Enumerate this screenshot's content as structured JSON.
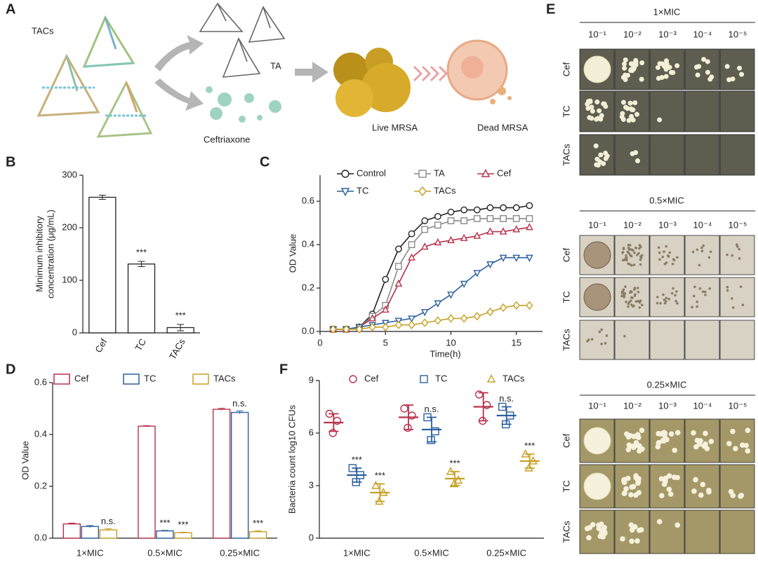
{
  "schematic": {
    "panel_label": "A",
    "labels": [
      "TACs",
      "TA",
      "Ceftriaxone",
      "Live MRSA",
      "Dead MRSA"
    ]
  },
  "plates": {
    "panel_label": "E",
    "blocks": [
      "1×MIC",
      "0.5×MIC",
      "0.25×MIC"
    ],
    "dilutions": [
      "10⁻¹",
      "10⁻²",
      "10⁻³",
      "10⁻⁴",
      "10⁻⁵"
    ],
    "rows": [
      "Cef",
      "TC",
      "TACs"
    ]
  },
  "chart_data": [
    {
      "panel_label": "B",
      "type": "bar",
      "ylabel": [
        "Minimum inhibitory",
        "concentration (μg/mL)"
      ],
      "categories": [
        "Cef",
        "TC",
        "TACs"
      ],
      "values": [
        258,
        131,
        10
      ],
      "errors": [
        4,
        5,
        6
      ],
      "annotations": [
        null,
        "***",
        "***"
      ],
      "color": "#222222",
      "ylim": [
        0,
        300
      ],
      "yticks": [
        0,
        100,
        200,
        300
      ]
    },
    {
      "panel_label": "C",
      "type": "line",
      "xlabel": "Time(h)",
      "ylabel": "OD Value",
      "x": [
        1,
        2,
        3,
        4,
        5,
        6,
        7,
        8,
        9,
        10,
        11,
        12,
        13,
        14,
        15,
        16
      ],
      "xlim": [
        0,
        17
      ],
      "xticks": [
        0,
        5,
        10,
        15
      ],
      "ylim": [
        0,
        0.72
      ],
      "yticks": [
        {
          "value": 0,
          "label": "0.0"
        },
        0.2,
        0.4,
        0.6
      ],
      "series": [
        {
          "name": "Control",
          "color": "#222222",
          "marker": "circle",
          "values": [
            0.01,
            0.01,
            0.02,
            0.08,
            0.24,
            0.38,
            0.45,
            0.51,
            0.53,
            0.55,
            0.56,
            0.56,
            0.57,
            0.57,
            0.57,
            0.58
          ]
        },
        {
          "name": "TA",
          "color": "#8a8a8a",
          "marker": "square",
          "values": [
            0.01,
            0.01,
            0.02,
            0.07,
            0.12,
            0.3,
            0.4,
            0.47,
            0.49,
            0.51,
            0.51,
            0.52,
            0.52,
            0.52,
            0.52,
            0.52
          ]
        },
        {
          "name": "Cef",
          "color": "#b8304a",
          "marker": "triangle",
          "values": [
            0.01,
            0.01,
            0.02,
            0.06,
            0.1,
            0.22,
            0.34,
            0.39,
            0.41,
            0.42,
            0.43,
            0.44,
            0.46,
            0.46,
            0.47,
            0.48
          ]
        },
        {
          "name": "TC",
          "color": "#2b5f9e",
          "marker": "triangle-down",
          "values": [
            0.01,
            0.01,
            0.02,
            0.03,
            0.04,
            0.05,
            0.06,
            0.09,
            0.13,
            0.17,
            0.22,
            0.27,
            0.31,
            0.34,
            0.34,
            0.34
          ]
        },
        {
          "name": "TACs",
          "color": "#c8a024",
          "marker": "diamond",
          "values": [
            0.01,
            0.01,
            0.01,
            0.02,
            0.02,
            0.03,
            0.03,
            0.04,
            0.05,
            0.06,
            0.06,
            0.07,
            0.09,
            0.11,
            0.12,
            0.12
          ]
        }
      ]
    },
    {
      "panel_label": "D",
      "type": "bar",
      "ylabel": "OD Value",
      "categories": [
        "1×MIC",
        "0.5×MIC",
        "0.25×MIC"
      ],
      "ylim": [
        0,
        0.6
      ],
      "yticks": [
        {
          "value": 0,
          "label": "0.0"
        },
        0.2,
        0.4,
        0.6
      ],
      "series": [
        {
          "name": "Cef",
          "color": "#b8304a",
          "values": [
            0.055,
            0.432,
            0.497
          ],
          "errors": [
            0.003,
            0.002,
            0.004
          ],
          "annotations": [
            null,
            null,
            null
          ]
        },
        {
          "name": "TC",
          "color": "#2b5f9e",
          "values": [
            0.045,
            0.028,
            0.485
          ],
          "errors": [
            0.004,
            0.002,
            0.006
          ],
          "annotations": [
            null,
            "***",
            "n.s."
          ]
        },
        {
          "name": "TACs",
          "color": "#c8a024",
          "values": [
            0.032,
            0.021,
            0.025
          ],
          "errors": [
            0.004,
            0.002,
            0.003
          ],
          "annotations": [
            "n.s.",
            "***",
            "***"
          ]
        }
      ]
    },
    {
      "panel_label": "F",
      "type": "strip",
      "ylabel": "Bacteria count log10 CFUs",
      "categories": [
        "1×MIC",
        "0.5×MIC",
        "0.25×MIC"
      ],
      "ylim": [
        0,
        9
      ],
      "yticks": [
        0,
        3,
        6,
        9
      ],
      "series": [
        {
          "name": "Cef",
          "color": "#b8304a",
          "marker": "circle",
          "values": [
            6.6,
            6.9,
            7.5
          ],
          "errors": [
            0.5,
            0.7,
            0.8
          ],
          "points": [
            [
              7.1,
              6.7,
              6.0
            ],
            [
              7.4,
              7.0,
              6.3
            ],
            [
              8.2,
              7.6,
              6.7
            ]
          ],
          "annotations": [
            null,
            null,
            null
          ]
        },
        {
          "name": "TC",
          "color": "#2b5f9e",
          "marker": "square",
          "values": [
            3.6,
            6.2,
            7.0
          ],
          "errors": [
            0.4,
            0.7,
            0.5
          ],
          "points": [
            [
              4.0,
              3.6,
              3.2
            ],
            [
              6.9,
              6.1,
              5.6
            ],
            [
              7.5,
              7.0,
              6.5
            ]
          ],
          "annotations": [
            "***",
            "n.s.",
            "n.s."
          ]
        },
        {
          "name": "TACs",
          "color": "#c8a024",
          "marker": "triangle",
          "values": [
            2.6,
            3.4,
            4.4
          ],
          "errors": [
            0.5,
            0.4,
            0.4
          ],
          "points": [
            [
              3.0,
              2.6,
              2.1
            ],
            [
              3.8,
              3.3,
              3.1
            ],
            [
              4.8,
              4.4,
              4.0
            ]
          ],
          "annotations": [
            "***",
            "***",
            "***"
          ]
        }
      ]
    }
  ]
}
